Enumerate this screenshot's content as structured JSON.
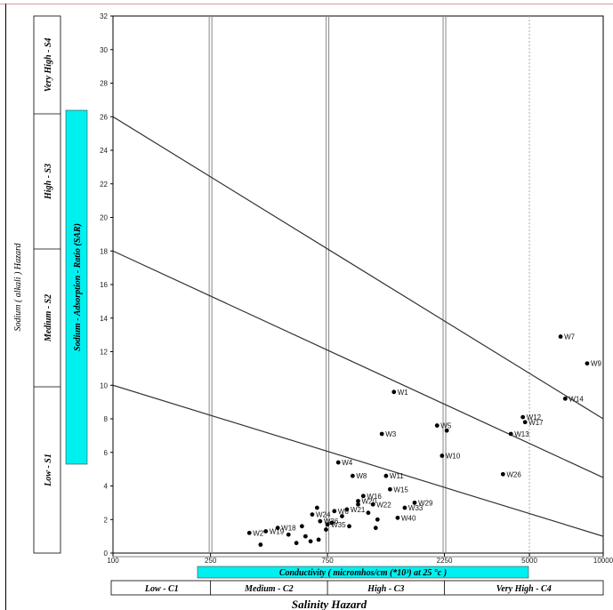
{
  "chart_data": {
    "type": "scatter",
    "title": "",
    "xlabel": "Conductivity ( micromhos/cm (*10³) at 25 °c )",
    "xlabel_bottom": "Salinity Hazard",
    "ylabel": "Sodium - Adsorption - Ratio (SAR)",
    "ylabel_outer": "Sodium ( alkali ) Hazard",
    "x_scale": "log",
    "xlim": [
      100,
      10000
    ],
    "ylim": [
      0,
      32
    ],
    "x_ticks": [
      "100",
      "250",
      "750",
      "2250",
      "5000",
      "10000"
    ],
    "y_ticks": [
      "0",
      "2",
      "4",
      "6",
      "8",
      "10",
      "12",
      "14",
      "16",
      "18",
      "20",
      "22",
      "24",
      "26",
      "28",
      "30",
      "32"
    ],
    "grid": "vertical lines at class boundaries",
    "salinity_classes": [
      "Low - C1",
      "Medium - C2",
      "High - C3",
      "Very High - C4"
    ],
    "sodium_classes": [
      "Low - S1",
      "Medium - S2",
      "High - S3",
      "Very High - S4"
    ],
    "boundary_lines": [
      {
        "x": [
          100,
          10000
        ],
        "y": [
          10,
          1
        ]
      },
      {
        "x": [
          100,
          10000
        ],
        "y": [
          18,
          4.5
        ]
      },
      {
        "x": [
          100,
          10000
        ],
        "y": [
          26,
          8
        ]
      }
    ],
    "points": [
      {
        "label": "W7",
        "x": 6700,
        "y": 12.9
      },
      {
        "label": "W9",
        "x": 8600,
        "y": 11.3
      },
      {
        "label": "W14",
        "x": 7000,
        "y": 9.2
      },
      {
        "label": "W1",
        "x": 1400,
        "y": 9.6
      },
      {
        "label": "W12",
        "x": 4700,
        "y": 8.1
      },
      {
        "label": "W17",
        "x": 4800,
        "y": 7.8
      },
      {
        "label": "W5",
        "x": 2100,
        "y": 7.6
      },
      {
        "label": "",
        "x": 2300,
        "y": 7.3
      },
      {
        "label": "W3",
        "x": 1250,
        "y": 7.1
      },
      {
        "label": "W13",
        "x": 4200,
        "y": 7.1
      },
      {
        "label": "W10",
        "x": 2200,
        "y": 5.8
      },
      {
        "label": "W4",
        "x": 830,
        "y": 5.4
      },
      {
        "label": "W26",
        "x": 3900,
        "y": 4.7
      },
      {
        "label": "W8",
        "x": 950,
        "y": 4.6
      },
      {
        "label": "W11",
        "x": 1300,
        "y": 4.6
      },
      {
        "label": "W15",
        "x": 1350,
        "y": 3.8
      },
      {
        "label": "W16",
        "x": 1050,
        "y": 3.4
      },
      {
        "label": "W20",
        "x": 1000,
        "y": 3.1
      },
      {
        "label": "W29",
        "x": 1700,
        "y": 3.0
      },
      {
        "label": "W22",
        "x": 1150,
        "y": 2.9
      },
      {
        "label": "W33",
        "x": 1550,
        "y": 2.7
      },
      {
        "label": "W21",
        "x": 900,
        "y": 2.6
      },
      {
        "label": "W6",
        "x": 800,
        "y": 2.5
      },
      {
        "label": "W24",
        "x": 650,
        "y": 2.3
      },
      {
        "label": "W40",
        "x": 1450,
        "y": 2.1
      },
      {
        "label": "W36",
        "x": 700,
        "y": 1.9
      },
      {
        "label": "W35",
        "x": 750,
        "y": 1.7
      },
      {
        "label": "W18",
        "x": 470,
        "y": 1.5
      },
      {
        "label": "W19",
        "x": 420,
        "y": 1.3
      },
      {
        "label": "W2",
        "x": 360,
        "y": 1.2
      },
      {
        "label": "",
        "x": 520,
        "y": 1.1
      },
      {
        "label": "",
        "x": 610,
        "y": 1.0
      },
      {
        "label": "",
        "x": 690,
        "y": 0.8
      },
      {
        "label": "",
        "x": 560,
        "y": 0.6
      },
      {
        "label": "",
        "x": 640,
        "y": 0.7
      },
      {
        "label": "",
        "x": 740,
        "y": 1.4
      },
      {
        "label": "",
        "x": 780,
        "y": 1.8
      },
      {
        "label": "",
        "x": 860,
        "y": 2.2
      },
      {
        "label": "",
        "x": 920,
        "y": 1.6
      },
      {
        "label": "",
        "x": 1100,
        "y": 2.4
      },
      {
        "label": "",
        "x": 1200,
        "y": 2.0
      },
      {
        "label": "",
        "x": 1180,
        "y": 1.5
      },
      {
        "label": "",
        "x": 1000,
        "y": 2.9
      },
      {
        "label": "",
        "x": 590,
        "y": 1.6
      },
      {
        "label": "",
        "x": 400,
        "y": 0.5
      },
      {
        "label": "",
        "x": 680,
        "y": 2.7
      }
    ]
  },
  "colors": {
    "highlight": "#00f0f0",
    "point": "#000000",
    "line": "#333333"
  }
}
